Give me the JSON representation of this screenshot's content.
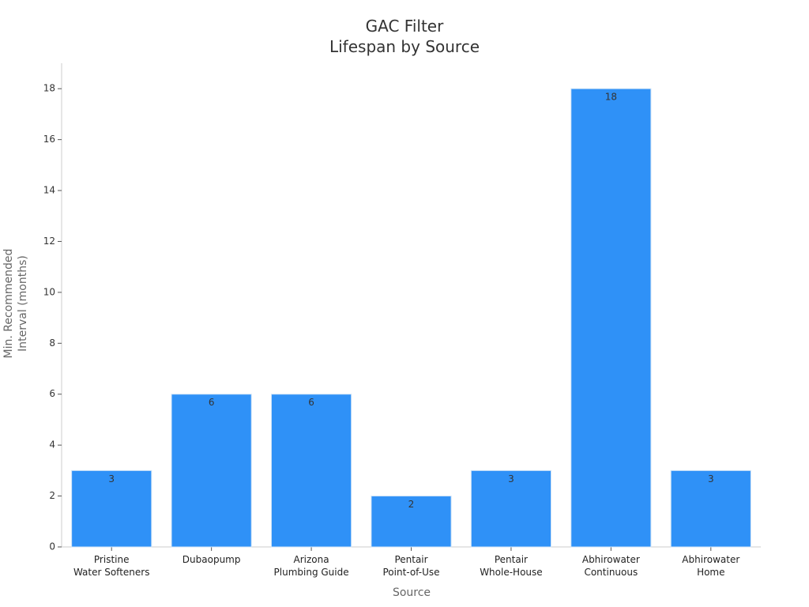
{
  "chart_data": {
    "type": "bar",
    "title": "GAC Filter\nLifespan by Source",
    "x_label": "Source",
    "y_label": "Min. Recommended\nInterval (months)",
    "categories": [
      "Pristine\nWater Softeners",
      "Dubaopump",
      "Arizona\nPlumbing Guide",
      "Pentair\nPoint-of-Use",
      "Pentair\nWhole-House",
      "Abhirowater\nContinuous",
      "Abhirowater\nHome"
    ],
    "values": [
      3,
      6,
      6,
      2,
      3,
      18,
      3
    ],
    "color": "#2f91f7",
    "ylim": [
      0,
      19
    ],
    "yticks": [
      0,
      2,
      4,
      6,
      8,
      10,
      12,
      14,
      16,
      18
    ],
    "grid": false
  }
}
